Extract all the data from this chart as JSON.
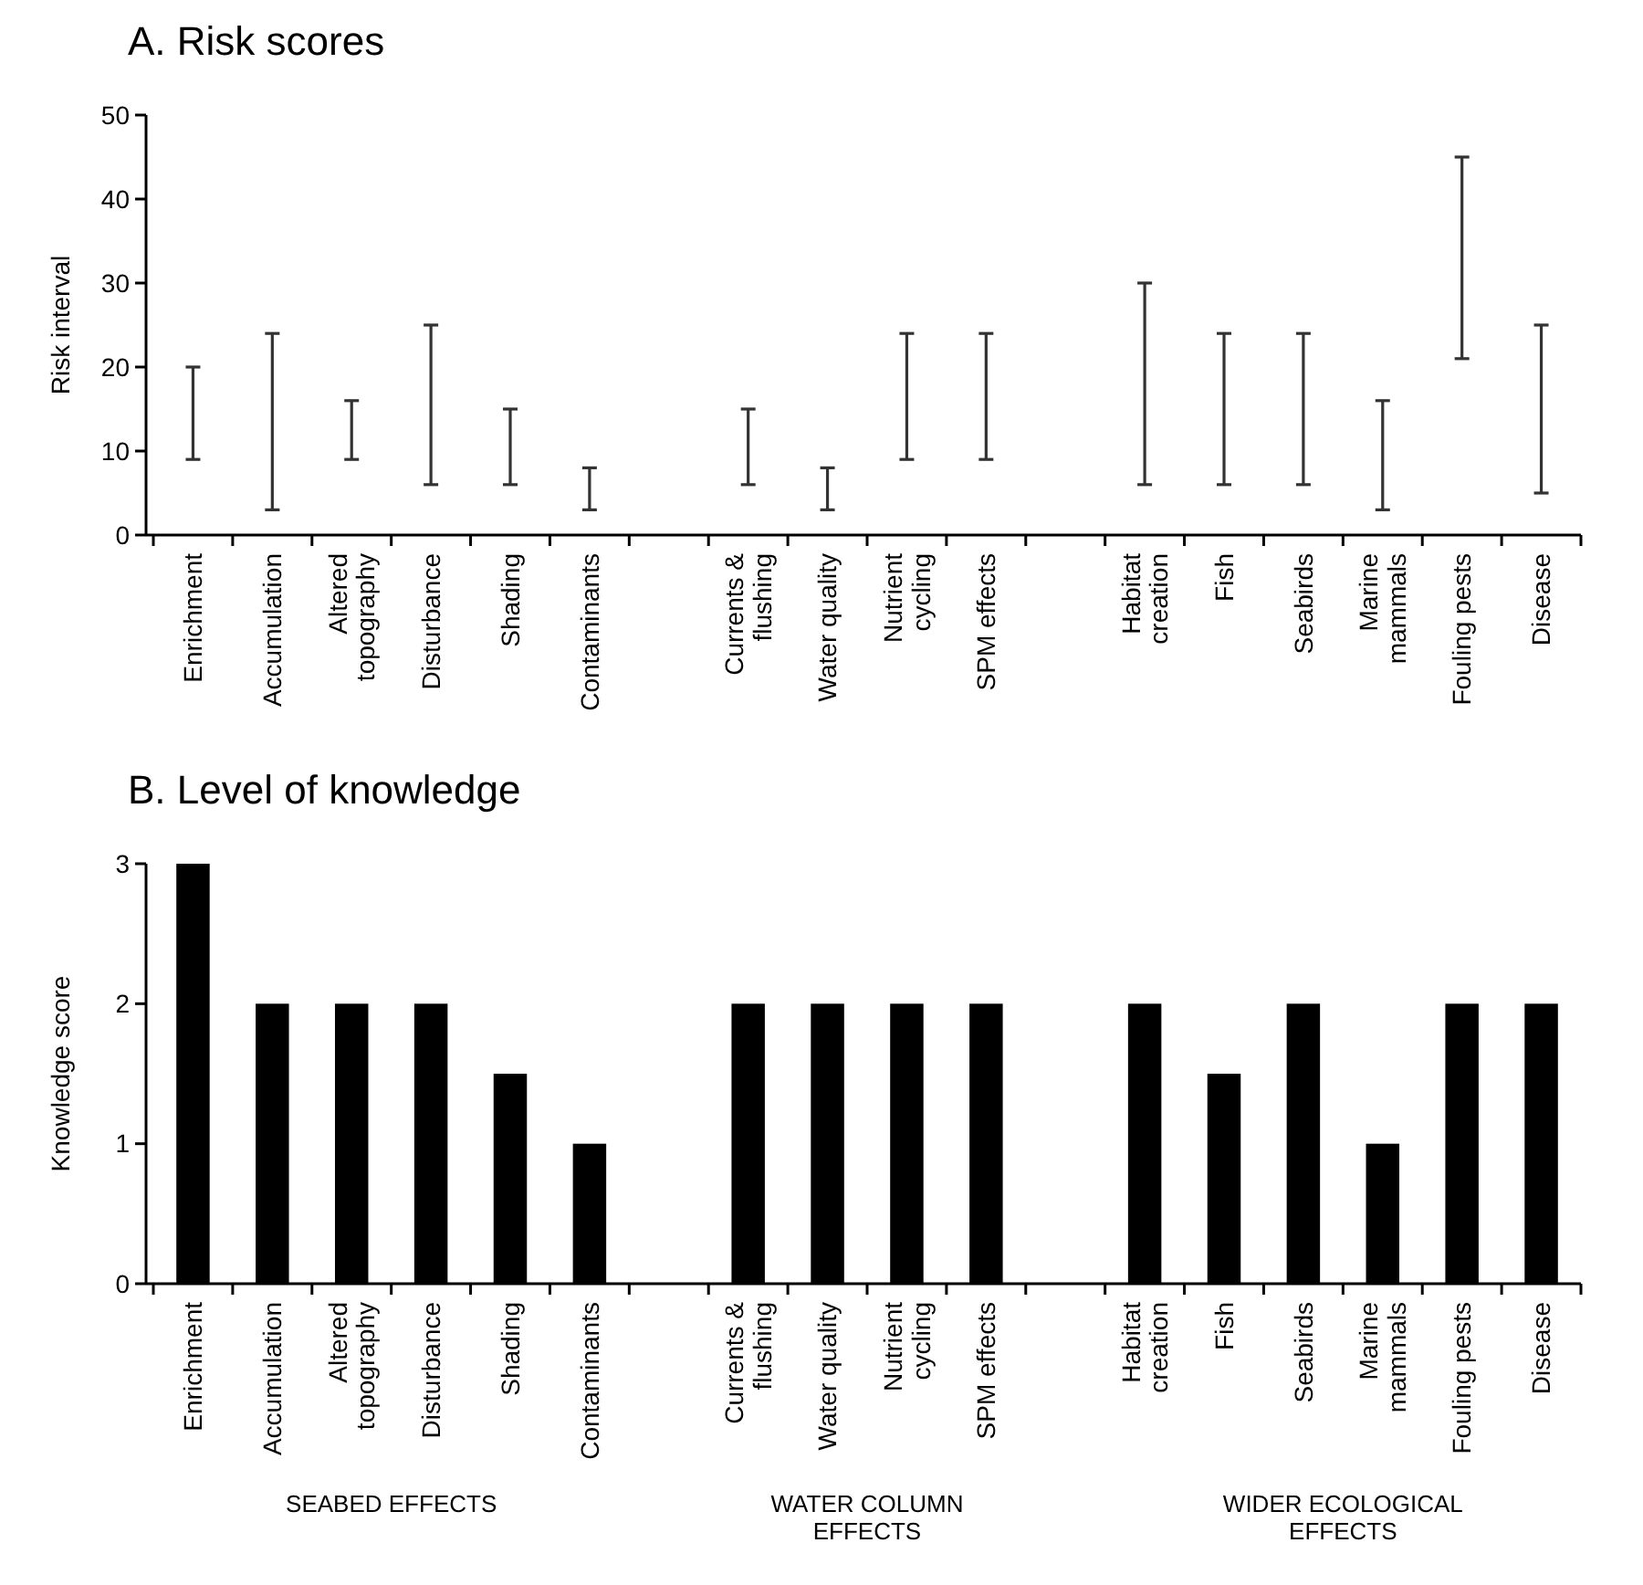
{
  "chart_data": [
    {
      "type": "bar",
      "title": "A. Risk scores",
      "ylabel": "Risk interval",
      "categories": [
        "Enrichment",
        "Accumulation",
        "Altered topography",
        "Disturbance",
        "Shading",
        "Contaminants",
        null,
        "Currents & flushing",
        "Water quality",
        "Nutrient cycling",
        "SPM effects",
        null,
        "Habitat creation",
        "Fish",
        "Seabirds",
        "Marine mammals",
        "Fouling pests",
        "Disease"
      ],
      "base": [
        9,
        3,
        9,
        6,
        6,
        3,
        null,
        6,
        3,
        9,
        9,
        null,
        6,
        6,
        6,
        3,
        21,
        5
      ],
      "values": [
        11,
        21,
        7,
        19,
        9,
        5,
        null,
        9,
        5,
        15,
        15,
        null,
        24,
        18,
        18,
        13,
        24,
        20
      ],
      "color": "#333333",
      "ylim": [
        0,
        50
      ],
      "yticks": [
        0,
        10,
        20,
        30,
        40,
        50
      ],
      "grid": false
    },
    {
      "type": "bar",
      "title": "B. Level of knowledge",
      "ylabel": "Knowledge score",
      "categories": [
        "Enrichment",
        "Accumulation",
        "Altered topography",
        "Disturbance",
        "Shading",
        "Contaminants",
        null,
        "Currents & flushing",
        "Water quality",
        "Nutrient cycling",
        "SPM effects",
        null,
        "Habitat creation",
        "Fish",
        "Seabirds",
        "Marine mammals",
        "Fouling pests",
        "Disease"
      ],
      "values": [
        3,
        2,
        2,
        2,
        1.5,
        1,
        null,
        2,
        2,
        2,
        2,
        null,
        2,
        1.5,
        2,
        1,
        2,
        2
      ],
      "color": "#000000",
      "ylim": [
        0,
        3
      ],
      "yticks": [
        0,
        1,
        2,
        3
      ],
      "grid": false,
      "annotations": [
        "SEABED EFFECTS",
        "WATER COLUMN EFFECTS",
        "WIDER ECOLOGICAL EFFECTS"
      ]
    }
  ]
}
